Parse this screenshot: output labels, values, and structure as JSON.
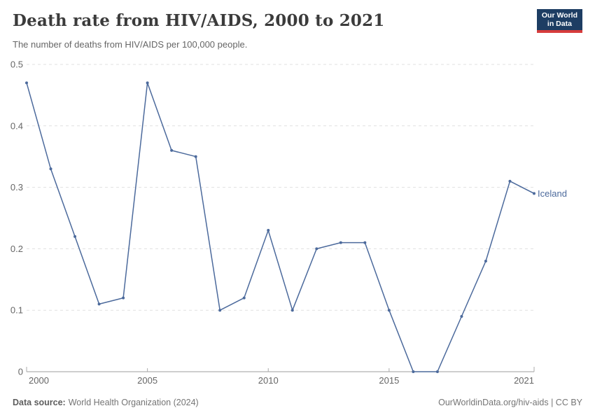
{
  "header": {
    "title": "Death rate from HIV/AIDS, 2000 to 2021",
    "subtitle": "The number of deaths from HIV/AIDS per 100,000 people.",
    "logo": {
      "line1": "Our World",
      "line2": "in Data",
      "bg_color": "#1d3d63",
      "accent_color": "#d73c3c"
    }
  },
  "chart_data": {
    "type": "line",
    "title": "Death rate from HIV/AIDS, 2000 to 2021",
    "xlabel": "",
    "ylabel": "",
    "x": [
      2000,
      2001,
      2002,
      2003,
      2004,
      2005,
      2006,
      2007,
      2008,
      2009,
      2010,
      2011,
      2012,
      2013,
      2014,
      2015,
      2016,
      2017,
      2018,
      2019,
      2020,
      2021
    ],
    "series": [
      {
        "name": "Iceland",
        "color": "#4c6a9c",
        "values": [
          0.47,
          0.33,
          0.22,
          0.11,
          0.12,
          0.47,
          0.36,
          0.35,
          0.1,
          0.12,
          0.23,
          0.1,
          0.2,
          0.21,
          0.21,
          0.1,
          0,
          0,
          0.09,
          0.18,
          0.31,
          0.29
        ]
      }
    ],
    "xlim": [
      2000,
      2021
    ],
    "ylim": [
      0,
      0.5
    ],
    "x_ticks": [
      2000,
      2005,
      2010,
      2015,
      2021
    ],
    "y_ticks": [
      0,
      0.1,
      0.2,
      0.3,
      0.4,
      0.5
    ],
    "grid": "horizontal-dashed",
    "legend": "end-of-line-label",
    "axis_color": "#9e9e9e",
    "gridline_color": "#e0e0e0",
    "tick_label_color": "#666666"
  },
  "footer": {
    "source_label": "Data source:",
    "source_text": "World Health Organization (2024)",
    "credit": "OurWorldinData.org/hiv-aids | CC BY"
  }
}
